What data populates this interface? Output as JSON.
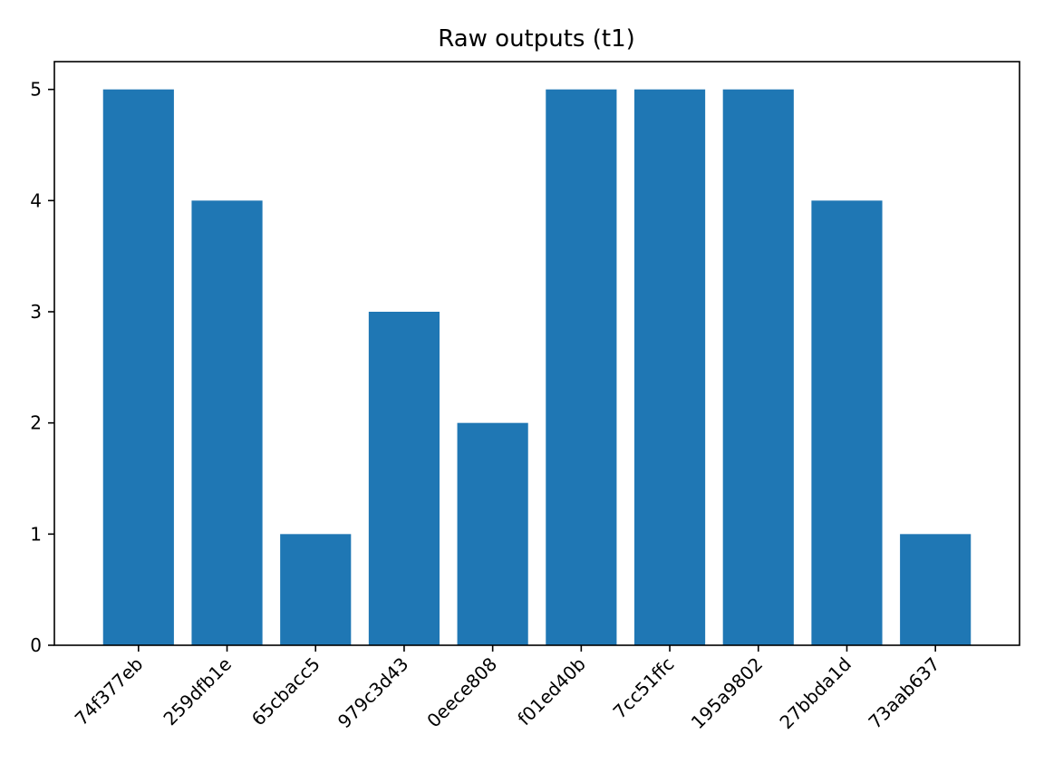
{
  "chart_data": {
    "type": "bar",
    "title": "Raw outputs (t1)",
    "xlabel": "",
    "ylabel": "",
    "categories": [
      "74f377eb",
      "259dfb1e",
      "65cbacc5",
      "979c3d43",
      "0eece808",
      "f01ed40b",
      "7cc51ffc",
      "195a9802",
      "27bbda1d",
      "73aab637"
    ],
    "values": [
      5,
      4,
      1,
      3,
      2,
      5,
      5,
      5,
      4,
      1
    ],
    "ylim": [
      0,
      5.25
    ],
    "yticks": [
      0,
      1,
      2,
      3,
      4,
      5
    ],
    "bar_color": "#1f77b4",
    "grid": false,
    "legend": "none"
  }
}
